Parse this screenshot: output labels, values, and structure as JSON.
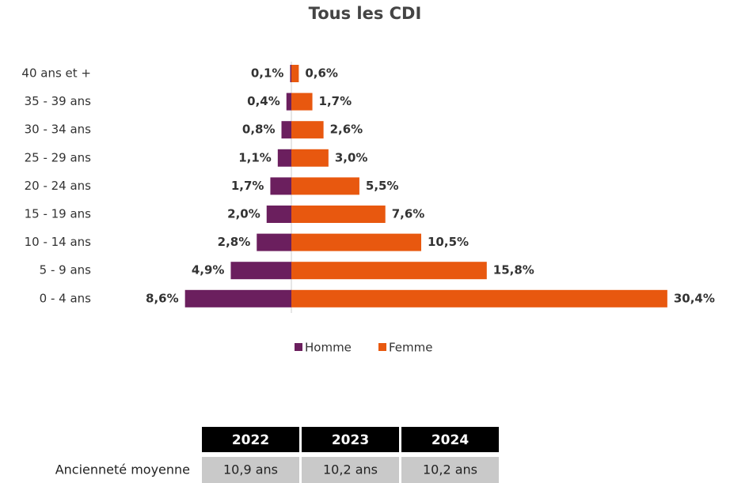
{
  "chart_data": {
    "type": "pyramid",
    "title": "Tous les CDI",
    "categories": [
      "40 ans et +",
      "35 - 39 ans",
      "30 - 34 ans",
      "25 - 29 ans",
      "20 - 24 ans",
      "15 - 19 ans",
      "10 - 14 ans",
      "5 - 9 ans",
      "0 - 4 ans"
    ],
    "series": [
      {
        "name": "Homme",
        "color": "#6b1f5e",
        "side": "left",
        "values": [
          0.1,
          0.4,
          0.8,
          1.1,
          1.7,
          2.0,
          2.8,
          4.9,
          8.6
        ],
        "value_labels": [
          "0,1%",
          "0,4%",
          "0,8%",
          "1,1%",
          "1,7%",
          "2,0%",
          "2,8%",
          "4,9%",
          "8,6%"
        ]
      },
      {
        "name": "Femme",
        "color": "#e8580f",
        "side": "right",
        "values": [
          0.6,
          1.7,
          2.6,
          3.0,
          5.5,
          7.6,
          10.5,
          15.8,
          30.4
        ],
        "value_labels": [
          "0,6%",
          "1,7%",
          "2,6%",
          "3,0%",
          "5,5%",
          "7,6%",
          "10,5%",
          "15,8%",
          "30,4%"
        ]
      }
    ]
  },
  "table": {
    "header": [
      "2022",
      "2023",
      "2024"
    ],
    "rows": [
      [
        "Ancienneté moyenne",
        "10,9 ans",
        "10,2 ans",
        "10,2 ans"
      ]
    ]
  }
}
